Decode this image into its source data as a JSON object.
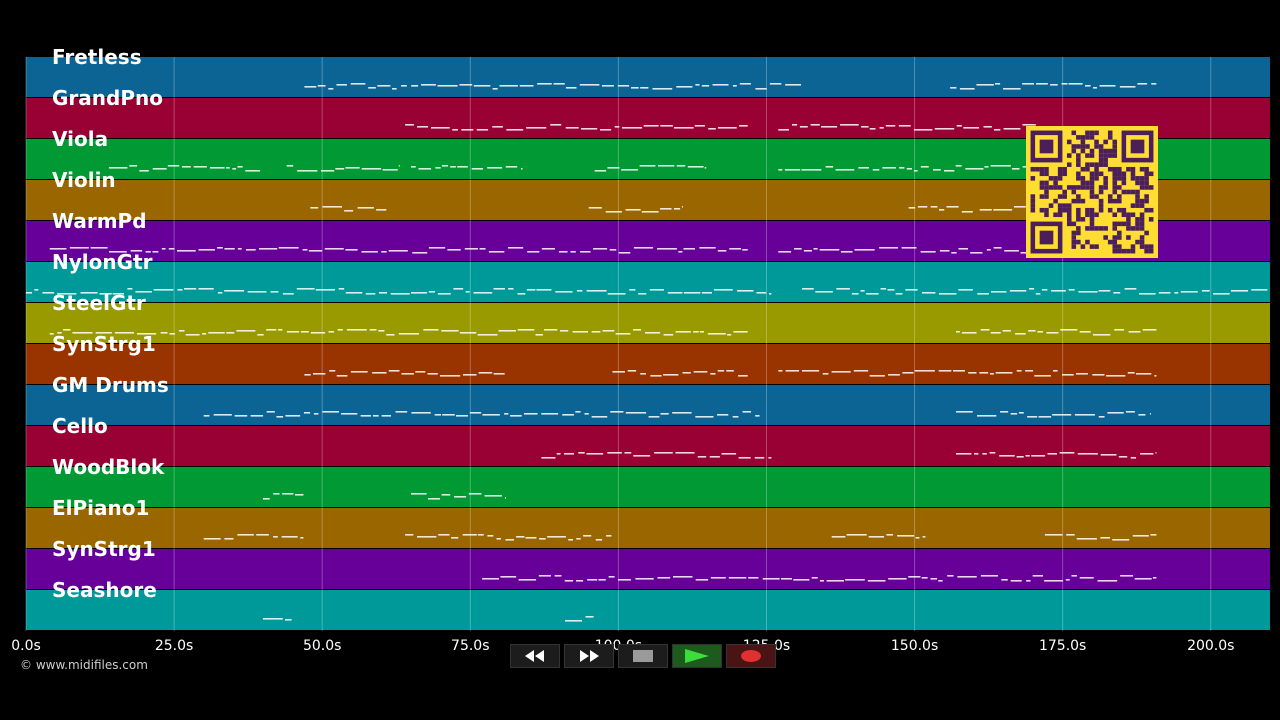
{
  "tracks": [
    {
      "name": "Fretless",
      "color": "#0b6494"
    },
    {
      "name": "GrandPno",
      "color": "#990033"
    },
    {
      "name": "Viola",
      "color": "#009933"
    },
    {
      "name": "Violin",
      "color": "#996600"
    },
    {
      "name": "WarmPd",
      "color": "#660099"
    },
    {
      "name": "NylonGtr",
      "color": "#009999"
    },
    {
      "name": "SteelGtr",
      "color": "#999900"
    },
    {
      "name": "SynStrg1",
      "color": "#993300"
    },
    {
      "name": "GM Drums",
      "color": "#0b6494"
    },
    {
      "name": "Cello",
      "color": "#990033"
    },
    {
      "name": "WoodBlok",
      "color": "#009933"
    },
    {
      "name": "ElPiano1",
      "color": "#996600"
    },
    {
      "name": "SynStrg1",
      "color": "#660099"
    },
    {
      "name": "Seashore",
      "color": "#009999"
    }
  ],
  "timeline": {
    "ticks": [
      "0.0s",
      "25.0s",
      "50.0s",
      "75.0s",
      "100.0s",
      "125.0s",
      "150.0s",
      "175.0s",
      "200.0s"
    ],
    "max_seconds": 210
  },
  "copyright": "© www.midifiles.com",
  "transport": {
    "buttons": [
      {
        "name": "rewind-button",
        "icon": "rewind-icon"
      },
      {
        "name": "fast-forward-button",
        "icon": "fast-forward-icon"
      },
      {
        "name": "stop-button",
        "icon": "stop-icon"
      },
      {
        "name": "play-button",
        "icon": "play-icon"
      },
      {
        "name": "record-button",
        "icon": "record-icon"
      }
    ]
  },
  "overlay": {
    "qr_color": "#ffdd33",
    "qr_icon": "qr-code-icon"
  },
  "note_segments": [
    [
      [
        47,
        131
      ],
      [
        156,
        191
      ]
    ],
    [
      [
        64,
        122
      ],
      [
        127,
        191
      ]
    ],
    [
      [
        14,
        40
      ],
      [
        44,
        63
      ],
      [
        65,
        84
      ],
      [
        96,
        115
      ],
      [
        127,
        191
      ]
    ],
    [
      [
        48,
        61
      ],
      [
        95,
        111
      ],
      [
        149,
        160
      ],
      [
        161,
        191
      ]
    ],
    [
      [
        4,
        122
      ],
      [
        127,
        191
      ]
    ],
    [
      [
        0,
        126
      ],
      [
        131,
        210
      ]
    ],
    [
      [
        4,
        122
      ],
      [
        157,
        191
      ]
    ],
    [
      [
        47,
        81
      ],
      [
        99,
        122
      ],
      [
        127,
        191
      ]
    ],
    [
      [
        30,
        124
      ],
      [
        157,
        190
      ]
    ],
    [
      [
        87,
        126
      ],
      [
        157,
        191
      ]
    ],
    [
      [
        40,
        47
      ],
      [
        65,
        81
      ]
    ],
    [
      [
        30,
        47
      ],
      [
        64,
        99
      ],
      [
        136,
        152
      ],
      [
        172,
        191
      ]
    ],
    [
      [
        77,
        191
      ]
    ],
    [
      [
        40,
        45
      ],
      [
        91,
        96
      ]
    ]
  ]
}
